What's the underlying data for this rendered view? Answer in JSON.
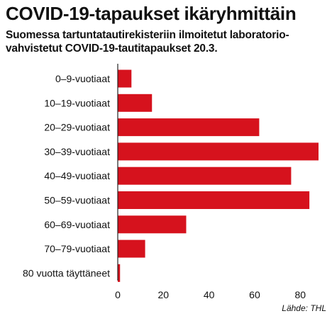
{
  "chart_data": {
    "type": "bar",
    "orientation": "horizontal",
    "title": "COVID-19-tapaukset ikäryhmittäin",
    "subtitle": "Suomessa tartuntatautirekisteriin ilmoitetut laboratorio-\nvahvistetut COVID-19-tautitapaukset 20.3.",
    "categories": [
      "0–9-vuotiaat",
      "10–19-vuotiaat",
      "20–29-vuotiaat",
      "30–39-vuotiaat",
      "40–49-vuotiaat",
      "50–59-vuotiaat",
      "60–69-vuotiaat",
      "70–79-vuotiaat",
      "80 vuotta täyttäneet"
    ],
    "values": [
      6,
      15,
      62,
      88,
      76,
      84,
      30,
      12,
      1
    ],
    "xlim": [
      0,
      88
    ],
    "xticks": [
      0,
      20,
      40,
      60,
      80
    ],
    "xlabel": "",
    "ylabel": "",
    "grid": false,
    "bar_color": "#d6121d",
    "source": "Lähde: THL"
  }
}
